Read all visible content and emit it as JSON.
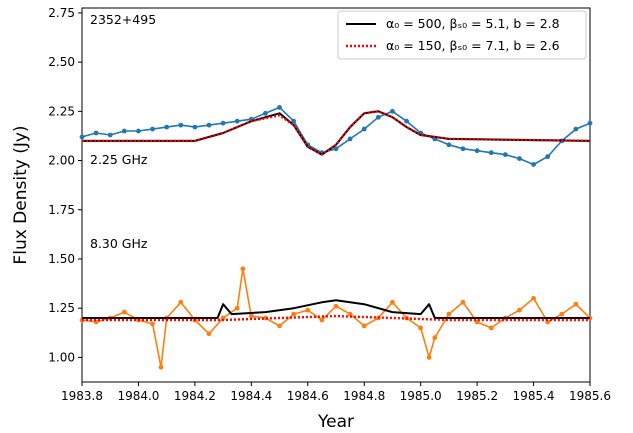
{
  "chart_data": {
    "type": "line",
    "xlabel": "Year",
    "ylabel": "Flux Density (Jy)",
    "xlim": [
      1983.8,
      1985.6
    ],
    "ylim": [
      0.875,
      2.775
    ],
    "xticks": [
      "1983.8",
      "1984.0",
      "1984.2",
      "1984.4",
      "1984.6",
      "1984.8",
      "1985.0",
      "1985.2",
      "1985.4",
      "1985.6"
    ],
    "xtick_values": [
      1983.8,
      1984.0,
      1984.2,
      1984.4,
      1984.6,
      1984.8,
      1985.0,
      1985.2,
      1985.4,
      1985.6
    ],
    "yticks": [
      "1.00",
      "1.25",
      "1.50",
      "1.75",
      "2.00",
      "2.25",
      "2.50",
      "2.75"
    ],
    "ytick_values": [
      1.0,
      1.25,
      1.5,
      1.75,
      2.0,
      2.25,
      2.5,
      2.75
    ],
    "grid": false,
    "legend_position": "top-right",
    "annotations": {
      "source": "2352+495",
      "freq_high": "2.25 GHz",
      "freq_low": "8.30 GHz"
    },
    "legend": [
      {
        "label": "α₀ = 500, βₛ₀ = 5.1, b = 2.8",
        "color": "#000000",
        "style": "solid"
      },
      {
        "label": "α₀ = 150, βₛ₀ = 7.1, b = 2.6",
        "color": "#ff0000",
        "style": "dotted"
      }
    ],
    "series": [
      {
        "name": "2.25 GHz",
        "kind": "data",
        "color": "#1f77b4",
        "points": [
          [
            1983.8,
            2.12
          ],
          [
            1983.85,
            2.14
          ],
          [
            1983.9,
            2.13
          ],
          [
            1983.95,
            2.15
          ],
          [
            1984.0,
            2.15
          ],
          [
            1984.05,
            2.16
          ],
          [
            1984.1,
            2.17
          ],
          [
            1984.15,
            2.18
          ],
          [
            1984.2,
            2.17
          ],
          [
            1984.25,
            2.18
          ],
          [
            1984.3,
            2.19
          ],
          [
            1984.35,
            2.2
          ],
          [
            1984.4,
            2.21
          ],
          [
            1984.45,
            2.24
          ],
          [
            1984.5,
            2.27
          ],
          [
            1984.55,
            2.2
          ],
          [
            1984.6,
            2.08
          ],
          [
            1984.65,
            2.04
          ],
          [
            1984.7,
            2.06
          ],
          [
            1984.75,
            2.11
          ],
          [
            1984.8,
            2.16
          ],
          [
            1984.85,
            2.22
          ],
          [
            1984.9,
            2.25
          ],
          [
            1984.95,
            2.2
          ],
          [
            1985.0,
            2.14
          ],
          [
            1985.05,
            2.11
          ],
          [
            1985.1,
            2.08
          ],
          [
            1985.15,
            2.06
          ],
          [
            1985.2,
            2.05
          ],
          [
            1985.25,
            2.04
          ],
          [
            1985.3,
            2.03
          ],
          [
            1985.35,
            2.01
          ],
          [
            1985.4,
            1.98
          ],
          [
            1985.45,
            2.02
          ],
          [
            1985.5,
            2.1
          ],
          [
            1985.55,
            2.16
          ],
          [
            1985.6,
            2.19
          ]
        ]
      },
      {
        "name": "8.30 GHz",
        "kind": "data",
        "color": "#ff7f0e",
        "points": [
          [
            1983.8,
            1.19
          ],
          [
            1983.85,
            1.18
          ],
          [
            1983.9,
            1.2
          ],
          [
            1983.95,
            1.23
          ],
          [
            1984.0,
            1.19
          ],
          [
            1984.05,
            1.17
          ],
          [
            1984.08,
            0.95
          ],
          [
            1984.1,
            1.2
          ],
          [
            1984.15,
            1.28
          ],
          [
            1984.2,
            1.19
          ],
          [
            1984.25,
            1.12
          ],
          [
            1984.3,
            1.2
          ],
          [
            1984.35,
            1.25
          ],
          [
            1984.37,
            1.45
          ],
          [
            1984.4,
            1.21
          ],
          [
            1984.45,
            1.2
          ],
          [
            1984.5,
            1.16
          ],
          [
            1984.55,
            1.22
          ],
          [
            1984.6,
            1.24
          ],
          [
            1984.65,
            1.19
          ],
          [
            1984.7,
            1.26
          ],
          [
            1984.75,
            1.22
          ],
          [
            1984.8,
            1.16
          ],
          [
            1984.85,
            1.2
          ],
          [
            1984.9,
            1.28
          ],
          [
            1984.95,
            1.2
          ],
          [
            1985.0,
            1.15
          ],
          [
            1985.03,
            1.0
          ],
          [
            1985.05,
            1.1
          ],
          [
            1985.1,
            1.22
          ],
          [
            1985.15,
            1.28
          ],
          [
            1985.2,
            1.18
          ],
          [
            1985.25,
            1.15
          ],
          [
            1985.3,
            1.2
          ],
          [
            1985.35,
            1.24
          ],
          [
            1985.4,
            1.3
          ],
          [
            1985.45,
            1.18
          ],
          [
            1985.5,
            1.22
          ],
          [
            1985.55,
            1.27
          ],
          [
            1985.6,
            1.2
          ]
        ]
      },
      {
        "name": "α₀ = 500, βₛ₀ = 5.1, b = 2.8",
        "kind": "model",
        "color": "#000000",
        "style": "solid",
        "points": [
          [
            1983.8,
            2.1
          ],
          [
            1984.2,
            2.1
          ],
          [
            1984.3,
            2.14
          ],
          [
            1984.4,
            2.2
          ],
          [
            1984.5,
            2.24
          ],
          [
            1984.55,
            2.18
          ],
          [
            1984.6,
            2.07
          ],
          [
            1984.65,
            2.03
          ],
          [
            1984.7,
            2.08
          ],
          [
            1984.75,
            2.17
          ],
          [
            1984.8,
            2.24
          ],
          [
            1984.85,
            2.25
          ],
          [
            1984.9,
            2.22
          ],
          [
            1984.95,
            2.17
          ],
          [
            1985.0,
            2.13
          ],
          [
            1985.1,
            2.11
          ],
          [
            1985.6,
            2.1
          ]
        ]
      },
      {
        "name": "α₀ = 150, βₛ₀ = 7.1, b = 2.6",
        "kind": "model",
        "color": "#ff0000",
        "style": "dotted",
        "points": [
          [
            1983.8,
            2.1
          ],
          [
            1984.2,
            2.1
          ],
          [
            1984.3,
            2.14
          ],
          [
            1984.4,
            2.2
          ],
          [
            1984.5,
            2.23
          ],
          [
            1984.55,
            2.18
          ],
          [
            1984.6,
            2.07
          ],
          [
            1984.65,
            2.03
          ],
          [
            1984.7,
            2.08
          ],
          [
            1984.75,
            2.17
          ],
          [
            1984.8,
            2.24
          ],
          [
            1984.85,
            2.25
          ],
          [
            1984.9,
            2.22
          ],
          [
            1984.95,
            2.17
          ],
          [
            1985.0,
            2.13
          ],
          [
            1985.1,
            2.11
          ],
          [
            1985.6,
            2.1
          ]
        ]
      },
      {
        "name": "α₀ = 500, βₛ₀ = 5.1, b = 2.8",
        "kind": "model",
        "color": "#000000",
        "style": "solid",
        "points": [
          [
            1983.8,
            1.2
          ],
          [
            1984.28,
            1.2
          ],
          [
            1984.3,
            1.27
          ],
          [
            1984.33,
            1.22
          ],
          [
            1984.45,
            1.23
          ],
          [
            1984.55,
            1.25
          ],
          [
            1984.65,
            1.28
          ],
          [
            1984.7,
            1.29
          ],
          [
            1984.8,
            1.27
          ],
          [
            1984.9,
            1.23
          ],
          [
            1985.0,
            1.22
          ],
          [
            1985.03,
            1.27
          ],
          [
            1985.05,
            1.2
          ],
          [
            1985.6,
            1.2
          ]
        ]
      },
      {
        "name": "α₀ = 150, βₛ₀ = 7.1, b = 2.6",
        "kind": "model",
        "color": "#ff0000",
        "style": "dotted",
        "points": [
          [
            1983.8,
            1.19
          ],
          [
            1984.3,
            1.19
          ],
          [
            1984.5,
            1.2
          ],
          [
            1984.7,
            1.21
          ],
          [
            1984.9,
            1.2
          ],
          [
            1985.1,
            1.19
          ],
          [
            1985.6,
            1.19
          ]
        ]
      }
    ]
  }
}
